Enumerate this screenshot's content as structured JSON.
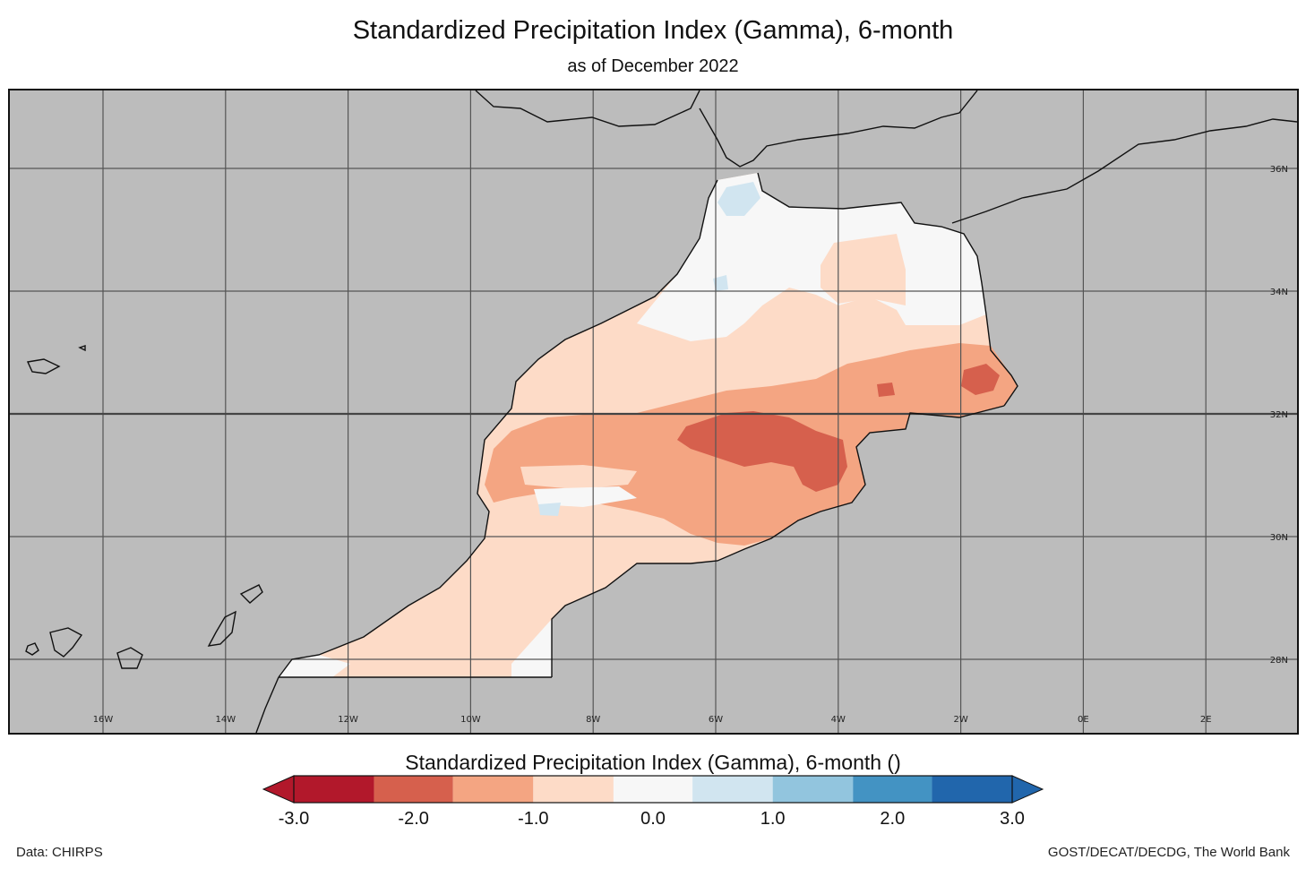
{
  "title": "Standardized Precipitation Index (Gamma), 6-month",
  "subtitle": "as of December 2022",
  "map": {
    "region": "Morocco",
    "variable": "SPI-6",
    "lon_range": [
      -17.5,
      3.5
    ],
    "lat_range": [
      27.0,
      37.5
    ],
    "lon_ticks": [
      {
        "value": -16,
        "label": "16W"
      },
      {
        "value": -14,
        "label": "14W"
      },
      {
        "value": -12,
        "label": "12W"
      },
      {
        "value": -10,
        "label": "10W"
      },
      {
        "value": -8,
        "label": "8W"
      },
      {
        "value": -6,
        "label": "6W"
      },
      {
        "value": -4,
        "label": "4W"
      },
      {
        "value": -2,
        "label": "2W"
      },
      {
        "value": 0,
        "label": "0E"
      },
      {
        "value": 2,
        "label": "2E"
      }
    ],
    "lat_ticks": [
      {
        "value": 36,
        "label": "36N"
      },
      {
        "value": 34,
        "label": "34N"
      },
      {
        "value": 32,
        "label": "32N"
      },
      {
        "value": 30,
        "label": "30N"
      },
      {
        "value": 28,
        "label": "28N"
      }
    ],
    "background_color": "#bcbcbc",
    "border_color": "#111111"
  },
  "colorbar": {
    "title": "Standardized Precipitation Index (Gamma), 6-month ()",
    "min": -3.0,
    "max": 3.0,
    "ticks": [
      "-3.0",
      "-2.0",
      "-1.0",
      "0.0",
      "1.0",
      "2.0",
      "3.0"
    ],
    "tick_values": [
      -3,
      -2,
      -1,
      0,
      1,
      2,
      3
    ],
    "bins": [
      {
        "from": -3.0,
        "to": -2.33,
        "color": "#b2182b"
      },
      {
        "from": -2.33,
        "to": -1.67,
        "color": "#d6604d"
      },
      {
        "from": -1.67,
        "to": -1.0,
        "color": "#f4a582"
      },
      {
        "from": -1.0,
        "to": -0.33,
        "color": "#fddbc7"
      },
      {
        "from": -0.33,
        "to": 0.33,
        "color": "#f7f7f7"
      },
      {
        "from": 0.33,
        "to": 1.0,
        "color": "#d1e5f0"
      },
      {
        "from": 1.0,
        "to": 1.67,
        "color": "#92c5de"
      },
      {
        "from": 1.67,
        "to": 2.33,
        "color": "#4393c3"
      },
      {
        "from": 2.33,
        "to": 3.0,
        "color": "#2166ac"
      }
    ],
    "under_color": "#b2182b",
    "over_color": "#2166ac"
  },
  "footer": {
    "data_source": "Data: CHIRPS",
    "credit": "GOST/DECAT/DECDG, The World Bank"
  }
}
